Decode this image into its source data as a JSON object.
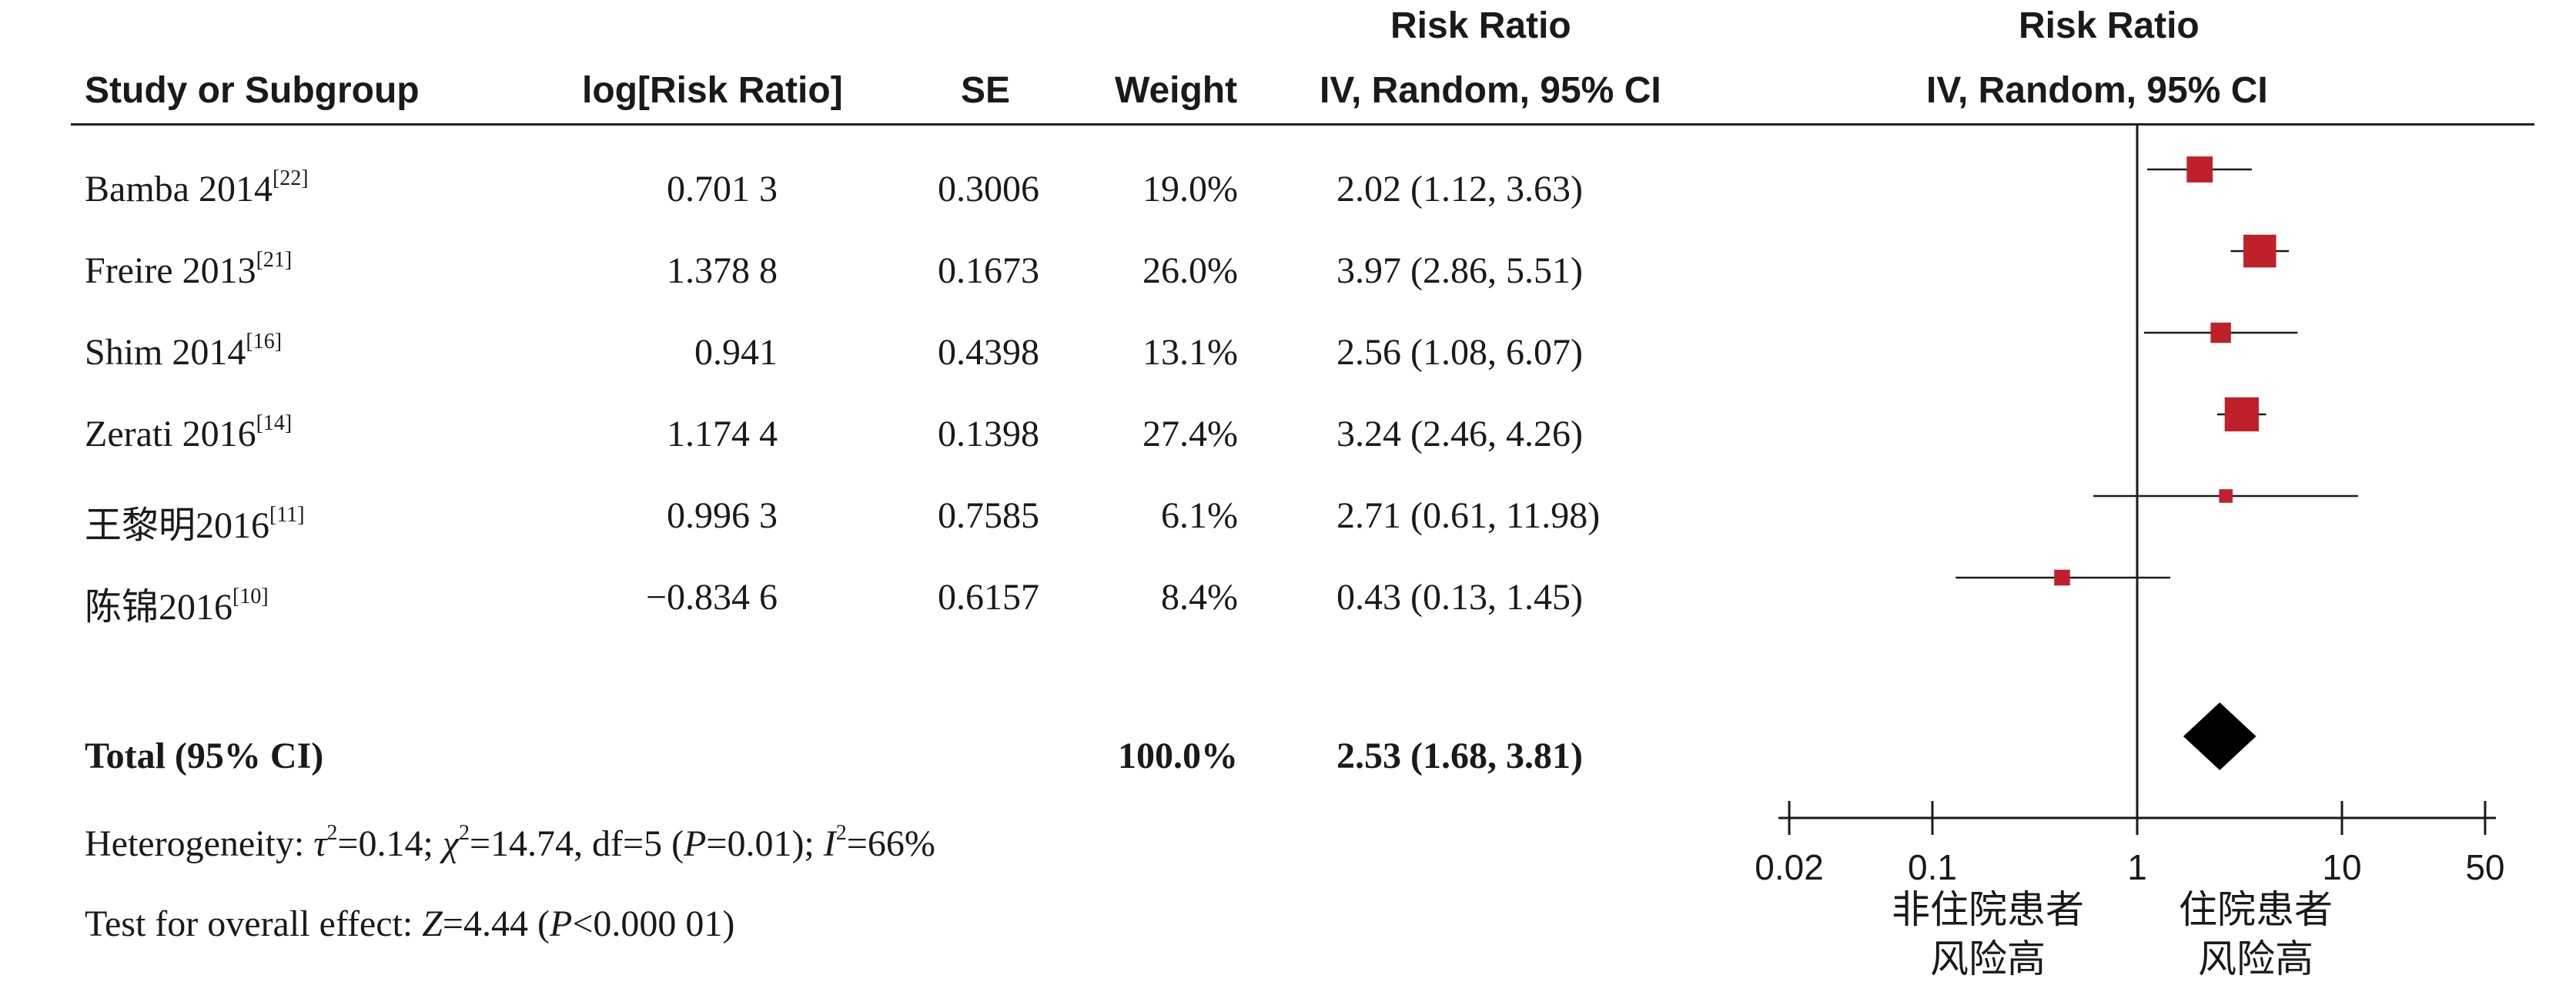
{
  "headers": {
    "study": "Study or Subgroup",
    "log_rr": "log[Risk Ratio]",
    "se": "SE",
    "weight": "Weight",
    "rr_top": "Risk Ratio",
    "rr_sub": "IV, Random, 95% CI",
    "plot_top": "Risk Ratio",
    "plot_sub": "IV, Random, 95% CI"
  },
  "studies": [
    {
      "name": "Bamba 2014",
      "ref": "[22]",
      "log_rr": "0.701 3",
      "se": "0.3006",
      "weight": "19.0%",
      "ci_text": "2.02 (1.12, 3.63)"
    },
    {
      "name": "Freire 2013",
      "ref": "[21]",
      "log_rr": "1.378 8",
      "se": "0.1673",
      "weight": "26.0%",
      "ci_text": "3.97 (2.86, 5.51)"
    },
    {
      "name": "Shim 2014",
      "ref": "[16]",
      "log_rr": "0.941",
      "se": "0.4398",
      "weight": "13.1%",
      "ci_text": "2.56 (1.08, 6.07)"
    },
    {
      "name": "Zerati 2016",
      "ref": "[14]",
      "log_rr": "1.174 4",
      "se": "0.1398",
      "weight": "27.4%",
      "ci_text": "3.24 (2.46, 4.26)"
    },
    {
      "name": "王黎明2016",
      "ref": "[11]",
      "log_rr": "0.996 3",
      "se": "0.7585",
      "weight": "6.1%",
      "ci_text": "2.71 (0.61, 11.98)"
    },
    {
      "name": "陈锦2016",
      "ref": "[10]",
      "log_rr": "−0.834 6",
      "se": "0.6157",
      "weight": "8.4%",
      "ci_text": "0.43 (0.13, 1.45)"
    }
  ],
  "total": {
    "label": "Total (95% CI)",
    "weight": "100.0%",
    "ci_text": "2.53 (1.68, 3.81)"
  },
  "heterogeneity": {
    "prefix": "Heterogeneity: ",
    "tau_sym": "τ",
    "tau_val": "=0.14; ",
    "chi_sym": "χ",
    "chi_val": "=14.74, df=5 (",
    "p_sym": "P",
    "p_val": "=0.01); ",
    "i_sym": "I",
    "i_val": "=66%",
    "sq": "2"
  },
  "overall": {
    "prefix": "Test for overall effect: ",
    "z_sym": "Z",
    "z_val": "=4.44 (",
    "p_sym": "P",
    "p_val": "<0.000 01)"
  },
  "axis": {
    "ticks": [
      "0.02",
      "0.1",
      "1",
      "10",
      "50"
    ],
    "left_label_line1": "非住院患者",
    "left_label_line2": "风险高",
    "right_label_line1": "住院患者",
    "right_label_line2": "风险高"
  },
  "colors": {
    "marker": "#c0202a",
    "diamond": "#000000",
    "line": "#1a1a1a"
  },
  "chart_data": {
    "type": "forest",
    "scale": "log",
    "xlim": [
      0.02,
      50
    ],
    "ticks": [
      0.02,
      0.1,
      1,
      10,
      50
    ],
    "null_value": 1,
    "studies": [
      {
        "name": "Bamba 2014",
        "rr": 2.02,
        "lower": 1.12,
        "upper": 3.63,
        "weight": 19.0
      },
      {
        "name": "Freire 2013",
        "rr": 3.97,
        "lower": 2.86,
        "upper": 5.51,
        "weight": 26.0
      },
      {
        "name": "Shim 2014",
        "rr": 2.56,
        "lower": 1.08,
        "upper": 6.07,
        "weight": 13.1
      },
      {
        "name": "Zerati 2016",
        "rr": 3.24,
        "lower": 2.46,
        "upper": 4.26,
        "weight": 27.4
      },
      {
        "name": "王黎明2016",
        "rr": 2.71,
        "lower": 0.61,
        "upper": 11.98,
        "weight": 6.1
      },
      {
        "name": "陈锦2016",
        "rr": 0.43,
        "lower": 0.13,
        "upper": 1.45,
        "weight": 8.4
      }
    ],
    "total": {
      "rr": 2.53,
      "lower": 1.68,
      "upper": 3.81
    }
  }
}
